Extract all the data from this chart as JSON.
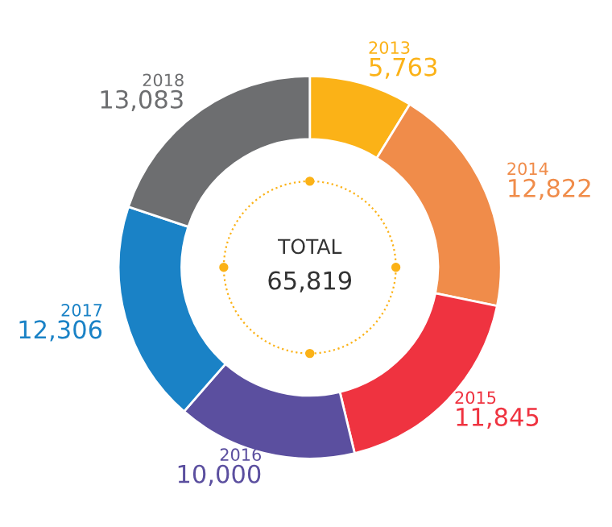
{
  "chart_data": {
    "type": "donut",
    "categories": [
      "2013",
      "2014",
      "2015",
      "2016",
      "2017",
      "2018"
    ],
    "values": [
      5763,
      12822,
      11845,
      10000,
      12306,
      13083
    ],
    "colors": [
      "#fbb217",
      "#f08c4a",
      "#ef3340",
      "#5b4f9f",
      "#1a82c6",
      "#6d6e70"
    ],
    "value_labels": [
      "5,763",
      "12,822",
      "11,845",
      "10,000",
      "12,306",
      "13,083"
    ],
    "annotations": [
      "TOTAL",
      "65,819"
    ],
    "legend": false
  }
}
